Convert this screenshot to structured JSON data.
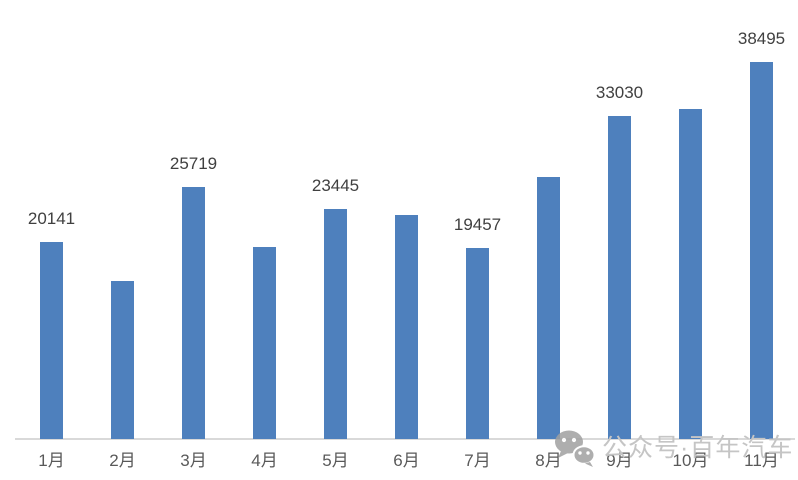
{
  "chart_data": {
    "type": "bar",
    "title": "",
    "xlabel": "",
    "ylabel": "",
    "categories": [
      "1月",
      "2月",
      "3月",
      "4月",
      "5月",
      "6月",
      "7月",
      "8月",
      "9月",
      "10月",
      "11月"
    ],
    "values": [
      20141,
      16100,
      25719,
      19600,
      23445,
      22900,
      19457,
      26750,
      33030,
      33650,
      38495
    ],
    "data_labels": [
      "20141",
      "",
      "25719",
      "",
      "23445",
      "",
      "19457",
      "",
      "33030",
      "",
      "38495"
    ],
    "ylim": [
      0,
      40000
    ],
    "grid": false,
    "legend": false,
    "bar_color": "#4e80bd",
    "axis_line_color": "#d9d9d9",
    "data_label_color": "#404040",
    "tick_label_color": "#595959"
  },
  "watermark": {
    "icon": "wechat-icon",
    "text": "公众号·百年汽车",
    "text_color": "#c5c5c5",
    "icon_color": "#a0a0a0"
  }
}
